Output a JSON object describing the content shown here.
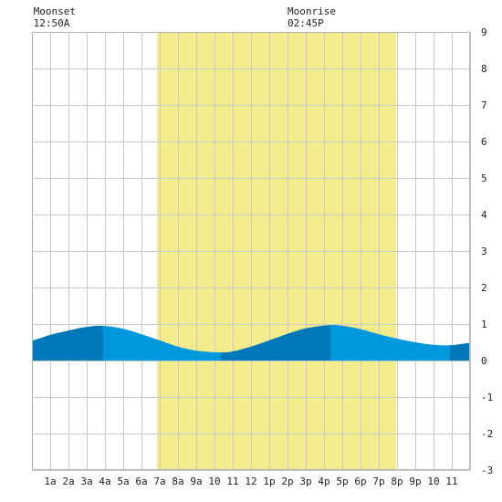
{
  "chart_data": {
    "type": "area",
    "title": "",
    "xlabel": "",
    "ylabel": "",
    "x_ticks": [
      "1a",
      "2a",
      "3a",
      "4a",
      "5a",
      "6a",
      "7a",
      "8a",
      "9a",
      "10",
      "11",
      "12",
      "1p",
      "2p",
      "3p",
      "4p",
      "5p",
      "6p",
      "7p",
      "8p",
      "9p",
      "10",
      "11"
    ],
    "xlim": [
      0,
      24
    ],
    "ylim": [
      -3,
      9
    ],
    "y_ticks": [
      -3,
      -2,
      -1,
      0,
      1,
      2,
      3,
      4,
      5,
      6,
      7,
      8,
      9
    ],
    "grid": true,
    "daylight": {
      "start": 6.85,
      "end": 19.95,
      "color": "#f2ec8c"
    },
    "tide": {
      "x": [
        0,
        1,
        2,
        3,
        3.9,
        5,
        6,
        7,
        8,
        9,
        10.35,
        11,
        12,
        13,
        14,
        15,
        16.35,
        17,
        18,
        19,
        20,
        21,
        22,
        23,
        24
      ],
      "y": [
        0.55,
        0.7,
        0.82,
        0.92,
        0.95,
        0.87,
        0.72,
        0.55,
        0.38,
        0.27,
        0.22,
        0.25,
        0.38,
        0.55,
        0.73,
        0.88,
        0.97,
        0.95,
        0.86,
        0.72,
        0.6,
        0.5,
        0.43,
        0.42,
        0.48
      ],
      "color_light": "#0098dc",
      "color_dark": "#0077b8",
      "dark_ranges": [
        [
          0,
          3.9
        ],
        [
          10.35,
          16.35
        ],
        [
          22.9,
          24
        ]
      ]
    },
    "annotations": [
      {
        "label": "Moonset",
        "time": "12:50A",
        "x": 0.83
      },
      {
        "label": "Moonrise",
        "time": "02:45P",
        "x": 14.75
      }
    ]
  }
}
